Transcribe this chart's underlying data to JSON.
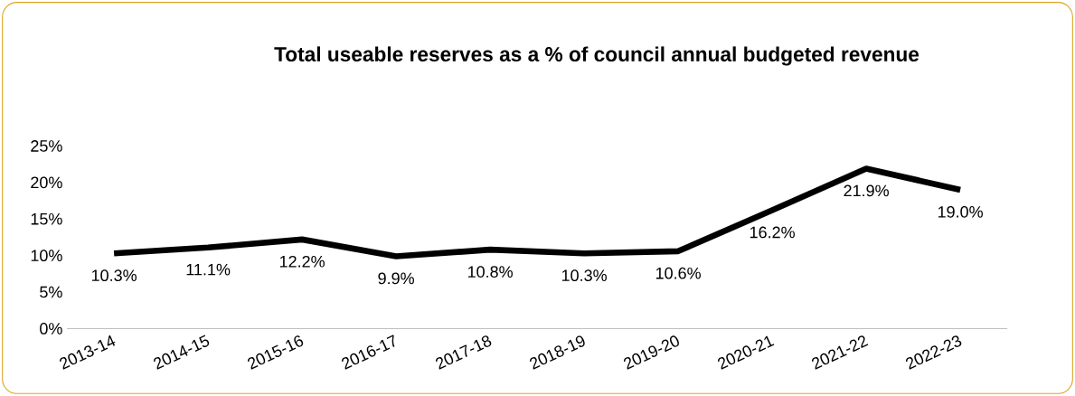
{
  "chart_data": {
    "type": "line",
    "title": "Total useable reserves as a % of council annual budgeted revenue",
    "categories": [
      "2013-14",
      "2014-15",
      "2015-16",
      "2016-17",
      "2017-18",
      "2018-19",
      "2019-20",
      "2020-21",
      "2021-22",
      "2022-23"
    ],
    "series": [
      {
        "color": "#000000",
        "values": [
          10.3,
          11.1,
          12.2,
          9.9,
          10.8,
          10.3,
          10.6,
          16.2,
          21.9,
          19.0
        ],
        "value_labels": [
          "10.3%",
          "11.1%",
          "12.2%",
          "9.9%",
          "10.8%",
          "10.3%",
          "10.6%",
          "16.2%",
          "21.9%",
          "19.0%"
        ]
      }
    ],
    "ylim": [
      0,
      25
    ],
    "yticks": [
      {
        "value": 0,
        "label": "0%"
      },
      {
        "value": 5,
        "label": "5%"
      },
      {
        "value": 10,
        "label": "10%"
      },
      {
        "value": 15,
        "label": "15%"
      },
      {
        "value": 20,
        "label": "20%"
      },
      {
        "value": 25,
        "label": "25%"
      }
    ],
    "grid": false,
    "marker": "none",
    "line_style": "solid"
  }
}
